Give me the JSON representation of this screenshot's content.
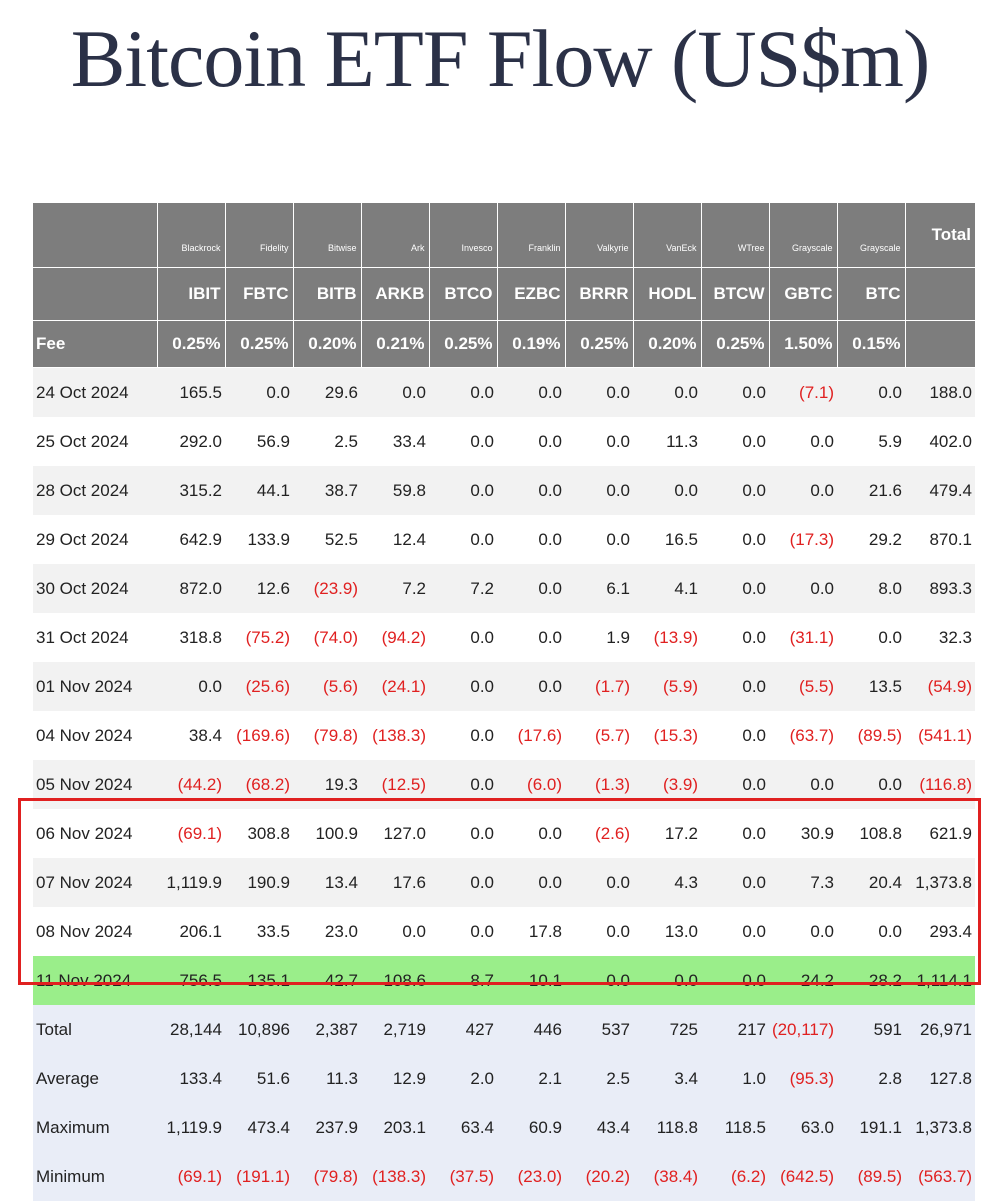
{
  "title": "Bitcoin ETF Flow (US$m)",
  "header": {
    "issuers": [
      "Blackrock",
      "Fidelity",
      "Bitwise",
      "Ark",
      "Invesco",
      "Franklin",
      "Valkyrie",
      "VanEck",
      "WTree",
      "Grayscale",
      "Grayscale"
    ],
    "tickers": [
      "IBIT",
      "FBTC",
      "BITB",
      "ARKB",
      "BTCO",
      "EZBC",
      "BRRR",
      "HODL",
      "BTCW",
      "GBTC",
      "BTC"
    ],
    "fee_label": "Fee",
    "fees": [
      "0.25%",
      "0.25%",
      "0.20%",
      "0.21%",
      "0.25%",
      "0.19%",
      "0.25%",
      "0.20%",
      "0.25%",
      "1.50%",
      "0.15%"
    ],
    "total_label": "Total"
  },
  "rows": [
    {
      "date": "24 Oct 2024",
      "values": [
        "165.5",
        "0.0",
        "29.6",
        "0.0",
        "0.0",
        "0.0",
        "0.0",
        "0.0",
        "0.0",
        "(7.1)",
        "0.0",
        "188.0"
      ]
    },
    {
      "date": "25 Oct 2024",
      "values": [
        "292.0",
        "56.9",
        "2.5",
        "33.4",
        "0.0",
        "0.0",
        "0.0",
        "11.3",
        "0.0",
        "0.0",
        "5.9",
        "402.0"
      ]
    },
    {
      "date": "28 Oct 2024",
      "values": [
        "315.2",
        "44.1",
        "38.7",
        "59.8",
        "0.0",
        "0.0",
        "0.0",
        "0.0",
        "0.0",
        "0.0",
        "21.6",
        "479.4"
      ]
    },
    {
      "date": "29 Oct 2024",
      "values": [
        "642.9",
        "133.9",
        "52.5",
        "12.4",
        "0.0",
        "0.0",
        "0.0",
        "16.5",
        "0.0",
        "(17.3)",
        "29.2",
        "870.1"
      ]
    },
    {
      "date": "30 Oct 2024",
      "values": [
        "872.0",
        "12.6",
        "(23.9)",
        "7.2",
        "7.2",
        "0.0",
        "6.1",
        "4.1",
        "0.0",
        "0.0",
        "8.0",
        "893.3"
      ]
    },
    {
      "date": "31 Oct 2024",
      "values": [
        "318.8",
        "(75.2)",
        "(74.0)",
        "(94.2)",
        "0.0",
        "0.0",
        "1.9",
        "(13.9)",
        "0.0",
        "(31.1)",
        "0.0",
        "32.3"
      ]
    },
    {
      "date": "01 Nov 2024",
      "values": [
        "0.0",
        "(25.6)",
        "(5.6)",
        "(24.1)",
        "0.0",
        "0.0",
        "(1.7)",
        "(5.9)",
        "0.0",
        "(5.5)",
        "13.5",
        "(54.9)"
      ]
    },
    {
      "date": "04 Nov 2024",
      "values": [
        "38.4",
        "(169.6)",
        "(79.8)",
        "(138.3)",
        "0.0",
        "(17.6)",
        "(5.7)",
        "(15.3)",
        "0.0",
        "(63.7)",
        "(89.5)",
        "(541.1)"
      ]
    },
    {
      "date": "05 Nov 2024",
      "values": [
        "(44.2)",
        "(68.2)",
        "19.3",
        "(12.5)",
        "0.0",
        "(6.0)",
        "(1.3)",
        "(3.9)",
        "0.0",
        "0.0",
        "0.0",
        "(116.8)"
      ]
    },
    {
      "date": "06 Nov 2024",
      "values": [
        "(69.1)",
        "308.8",
        "100.9",
        "127.0",
        "0.0",
        "0.0",
        "(2.6)",
        "17.2",
        "0.0",
        "30.9",
        "108.8",
        "621.9"
      ]
    },
    {
      "date": "07 Nov 2024",
      "values": [
        "1,119.9",
        "190.9",
        "13.4",
        "17.6",
        "0.0",
        "0.0",
        "0.0",
        "4.3",
        "0.0",
        "7.3",
        "20.4",
        "1,373.8"
      ]
    },
    {
      "date": "08 Nov 2024",
      "values": [
        "206.1",
        "33.5",
        "23.0",
        "0.0",
        "0.0",
        "17.8",
        "0.0",
        "13.0",
        "0.0",
        "0.0",
        "0.0",
        "293.4"
      ]
    },
    {
      "date": "11 Nov 2024",
      "values": [
        "756.5",
        "135.1",
        "42.7",
        "108.6",
        "8.7",
        "10.1",
        "0.0",
        "0.0",
        "0.0",
        "24.2",
        "28.2",
        "1,114.1"
      ]
    }
  ],
  "stats": [
    {
      "label": "Total",
      "values": [
        "28,144",
        "10,896",
        "2,387",
        "2,719",
        "427",
        "446",
        "537",
        "725",
        "217",
        "(20,117)",
        "591",
        "26,971"
      ]
    },
    {
      "label": "Average",
      "values": [
        "133.4",
        "51.6",
        "11.3",
        "12.9",
        "2.0",
        "2.1",
        "2.5",
        "3.4",
        "1.0",
        "(95.3)",
        "2.8",
        "127.8"
      ]
    },
    {
      "label": "Maximum",
      "values": [
        "1,119.9",
        "473.4",
        "237.9",
        "203.1",
        "63.4",
        "60.9",
        "43.4",
        "118.8",
        "118.5",
        "63.0",
        "191.1",
        "1,373.8"
      ]
    },
    {
      "label": "Minimum",
      "values": [
        "(69.1)",
        "(191.1)",
        "(79.8)",
        "(138.3)",
        "(37.5)",
        "(23.0)",
        "(20.2)",
        "(38.4)",
        "(6.2)",
        "(642.5)",
        "(89.5)",
        "(563.7)"
      ]
    }
  ],
  "highlight_date": "11 Nov 2024",
  "colors": {
    "negative": "#e02020",
    "highlight_row": "#9aee8a",
    "header_bg": "#7d7d7d",
    "stats_bg": "#e9edf7",
    "box_border": "#e02020"
  }
}
